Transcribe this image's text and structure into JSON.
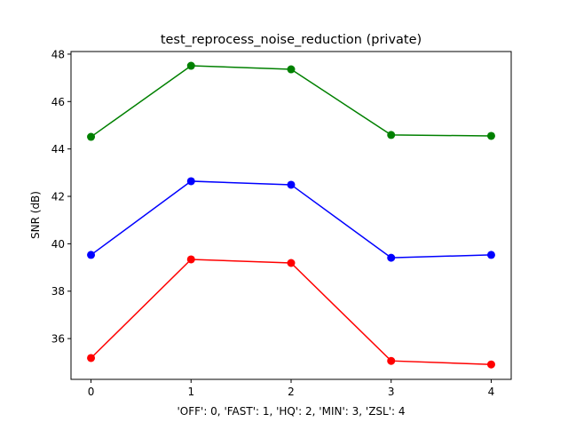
{
  "chart_data": {
    "type": "line",
    "title": "test_reprocess_noise_reduction (private)",
    "xlabel": "'OFF': 0, 'FAST': 1, 'HQ': 2, 'MIN': 3, 'ZSL': 4",
    "ylabel": "SNR (dB)",
    "x": [
      0,
      1,
      2,
      3,
      4
    ],
    "xlim": [
      -0.2,
      4.2
    ],
    "ylim": [
      34.28,
      48.11
    ],
    "xticks": [
      "0",
      "1",
      "2",
      "3",
      "4"
    ],
    "yticks": [
      "36",
      "38",
      "40",
      "42",
      "44",
      "46",
      "48"
    ],
    "grid": false,
    "series": [
      {
        "color": "#008000",
        "values": [
          44.51,
          47.51,
          47.36,
          44.59,
          44.55
        ]
      },
      {
        "color": "#0000ff",
        "values": [
          39.53,
          42.64,
          42.49,
          39.41,
          39.53
        ]
      },
      {
        "color": "#ff0000",
        "values": [
          35.18,
          39.34,
          39.19,
          35.06,
          34.91
        ]
      }
    ]
  }
}
